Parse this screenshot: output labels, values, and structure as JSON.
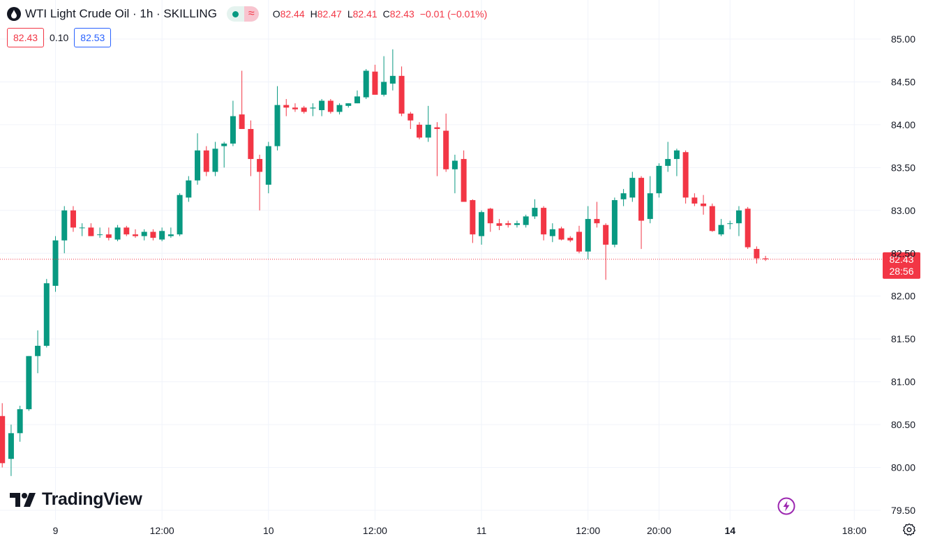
{
  "legend": {
    "title": "WTI Light Crude Oil · 1h · SKILLING",
    "ohlc": [
      {
        "label": "O",
        "value": "82.44"
      },
      {
        "label": "H",
        "value": "82.47"
      },
      {
        "label": "L",
        "value": "82.41"
      },
      {
        "label": "C",
        "value": "82.43"
      }
    ],
    "change": "−0.01 (−0.01%)",
    "status_icon": "market-open-dot",
    "delayed_icon": "wave-icon"
  },
  "price_boxes": {
    "bid": "82.43",
    "spread": "0.10",
    "ask": "82.53"
  },
  "last_price_label": "82.43",
  "countdown_label": "28:56",
  "logo_text": "TradingView",
  "colors": {
    "up": "#089981",
    "down": "#f23645",
    "grid": "#f0f3fa",
    "axis_text": "#131722"
  },
  "chart_data": {
    "type": "candlestick",
    "y_axis": {
      "min": 79.35,
      "max": 85.2,
      "ticks": [
        "85.00",
        "84.50",
        "84.00",
        "83.50",
        "83.00",
        "82.50",
        "82.00",
        "81.50",
        "81.00",
        "80.50",
        "80.00",
        "79.50"
      ],
      "position": "right"
    },
    "x_axis": {
      "labels": [
        {
          "index": 6,
          "text": "9",
          "bold": false
        },
        {
          "index": 18,
          "text": "12:00",
          "bold": false
        },
        {
          "index": 30,
          "text": "10",
          "bold": false
        },
        {
          "index": 42,
          "text": "12:00",
          "bold": false
        },
        {
          "index": 54,
          "text": "11",
          "bold": false
        },
        {
          "index": 66,
          "text": "12:00",
          "bold": false
        },
        {
          "index": 74,
          "text": "20:00",
          "bold": false
        },
        {
          "index": 82,
          "text": "14",
          "bold": true
        },
        {
          "index": 96,
          "text": "18:00",
          "bold": false
        }
      ]
    },
    "last_price": 82.43,
    "grid": true,
    "candles": [
      [
        80.6,
        80.75,
        80.0,
        80.05
      ],
      [
        80.1,
        80.5,
        79.9,
        80.4
      ],
      [
        80.4,
        80.72,
        80.3,
        80.68
      ],
      [
        80.68,
        81.3,
        80.66,
        81.3
      ],
      [
        81.3,
        81.6,
        81.1,
        81.42
      ],
      [
        81.42,
        82.2,
        81.4,
        82.15
      ],
      [
        82.12,
        82.7,
        82.05,
        82.65
      ],
      [
        82.65,
        83.05,
        82.5,
        83.0
      ],
      [
        83.0,
        83.05,
        82.75,
        82.8
      ],
      [
        82.8,
        82.85,
        82.7,
        82.8
      ],
      [
        82.8,
        82.85,
        82.7,
        82.7
      ],
      [
        82.72,
        82.8,
        82.68,
        82.72
      ],
      [
        82.72,
        82.8,
        82.65,
        82.68
      ],
      [
        82.66,
        82.83,
        82.64,
        82.8
      ],
      [
        82.8,
        82.82,
        82.7,
        82.72
      ],
      [
        82.72,
        82.78,
        82.68,
        82.7
      ],
      [
        82.7,
        82.78,
        82.65,
        82.75
      ],
      [
        82.75,
        82.78,
        82.65,
        82.68
      ],
      [
        82.66,
        82.8,
        82.64,
        82.76
      ],
      [
        82.7,
        82.8,
        82.68,
        82.72
      ],
      [
        82.72,
        83.2,
        82.7,
        83.18
      ],
      [
        83.15,
        83.4,
        83.1,
        83.35
      ],
      [
        83.35,
        83.9,
        83.3,
        83.7
      ],
      [
        83.7,
        83.75,
        83.4,
        83.45
      ],
      [
        83.45,
        83.8,
        83.4,
        83.72
      ],
      [
        83.75,
        83.8,
        83.5,
        83.78
      ],
      [
        83.78,
        84.28,
        83.75,
        84.1
      ],
      [
        84.12,
        84.63,
        83.95,
        83.95
      ],
      [
        83.95,
        84.05,
        83.4,
        83.6
      ],
      [
        83.6,
        83.65,
        83.0,
        83.45
      ],
      [
        83.3,
        83.8,
        83.2,
        83.75
      ],
      [
        83.75,
        84.45,
        83.7,
        84.23
      ],
      [
        84.23,
        84.3,
        84.1,
        84.2
      ],
      [
        84.2,
        84.25,
        84.15,
        84.18
      ],
      [
        84.2,
        84.22,
        84.13,
        84.15
      ],
      [
        84.19,
        84.25,
        84.1,
        84.2
      ],
      [
        84.17,
        84.3,
        84.1,
        84.28
      ],
      [
        84.28,
        84.3,
        84.13,
        84.15
      ],
      [
        84.15,
        84.25,
        84.12,
        84.23
      ],
      [
        84.22,
        84.25,
        84.2,
        84.25
      ],
      [
        84.25,
        84.4,
        84.25,
        84.33
      ],
      [
        84.32,
        84.65,
        84.3,
        84.63
      ],
      [
        84.62,
        84.7,
        84.35,
        84.35
      ],
      [
        84.35,
        84.8,
        84.33,
        84.5
      ],
      [
        84.48,
        84.88,
        84.4,
        84.57
      ],
      [
        84.57,
        84.68,
        84.1,
        84.13
      ],
      [
        84.13,
        84.15,
        83.95,
        84.05
      ],
      [
        84.0,
        84.03,
        83.83,
        83.85
      ],
      [
        83.85,
        84.22,
        83.8,
        84.0
      ],
      [
        83.97,
        84.03,
        83.4,
        83.95
      ],
      [
        83.93,
        84.13,
        83.45,
        83.48
      ],
      [
        83.48,
        83.65,
        83.2,
        83.58
      ],
      [
        83.6,
        83.7,
        83.1,
        83.1
      ],
      [
        83.12,
        83.13,
        82.62,
        82.72
      ],
      [
        82.7,
        83.0,
        82.6,
        82.98
      ],
      [
        83.02,
        83.03,
        82.75,
        82.85
      ],
      [
        82.85,
        82.9,
        82.77,
        82.82
      ],
      [
        82.85,
        82.88,
        82.8,
        82.83
      ],
      [
        82.83,
        82.88,
        82.8,
        82.85
      ],
      [
        82.83,
        82.95,
        82.8,
        82.93
      ],
      [
        82.93,
        83.13,
        82.9,
        83.03
      ],
      [
        83.03,
        83.05,
        82.65,
        82.72
      ],
      [
        82.7,
        82.85,
        82.63,
        82.78
      ],
      [
        82.79,
        82.81,
        82.65,
        82.66
      ],
      [
        82.68,
        82.7,
        82.63,
        82.65
      ],
      [
        82.75,
        82.82,
        82.5,
        82.52
      ],
      [
        82.52,
        83.05,
        82.43,
        82.9
      ],
      [
        82.9,
        83.1,
        82.8,
        82.85
      ],
      [
        82.83,
        82.85,
        82.19,
        82.6
      ],
      [
        82.6,
        83.15,
        82.57,
        83.12
      ],
      [
        83.13,
        83.25,
        83.05,
        83.2
      ],
      [
        83.15,
        83.45,
        83.1,
        83.38
      ],
      [
        83.38,
        83.4,
        82.55,
        82.88
      ],
      [
        82.9,
        83.4,
        82.85,
        83.2
      ],
      [
        83.2,
        83.55,
        83.15,
        83.52
      ],
      [
        83.52,
        83.8,
        83.45,
        83.6
      ],
      [
        83.6,
        83.72,
        83.4,
        83.7
      ],
      [
        83.68,
        83.7,
        83.08,
        83.15
      ],
      [
        83.15,
        83.2,
        83.05,
        83.08
      ],
      [
        83.08,
        83.18,
        82.95,
        83.05
      ],
      [
        83.05,
        83.08,
        82.75,
        82.76
      ],
      [
        82.72,
        82.9,
        82.7,
        82.83
      ],
      [
        82.85,
        82.88,
        82.78,
        82.85
      ],
      [
        82.85,
        83.05,
        82.7,
        83.0
      ],
      [
        83.02,
        83.04,
        82.55,
        82.57
      ],
      [
        82.55,
        82.58,
        82.38,
        82.44
      ],
      [
        82.44,
        82.47,
        82.41,
        82.43
      ]
    ]
  }
}
